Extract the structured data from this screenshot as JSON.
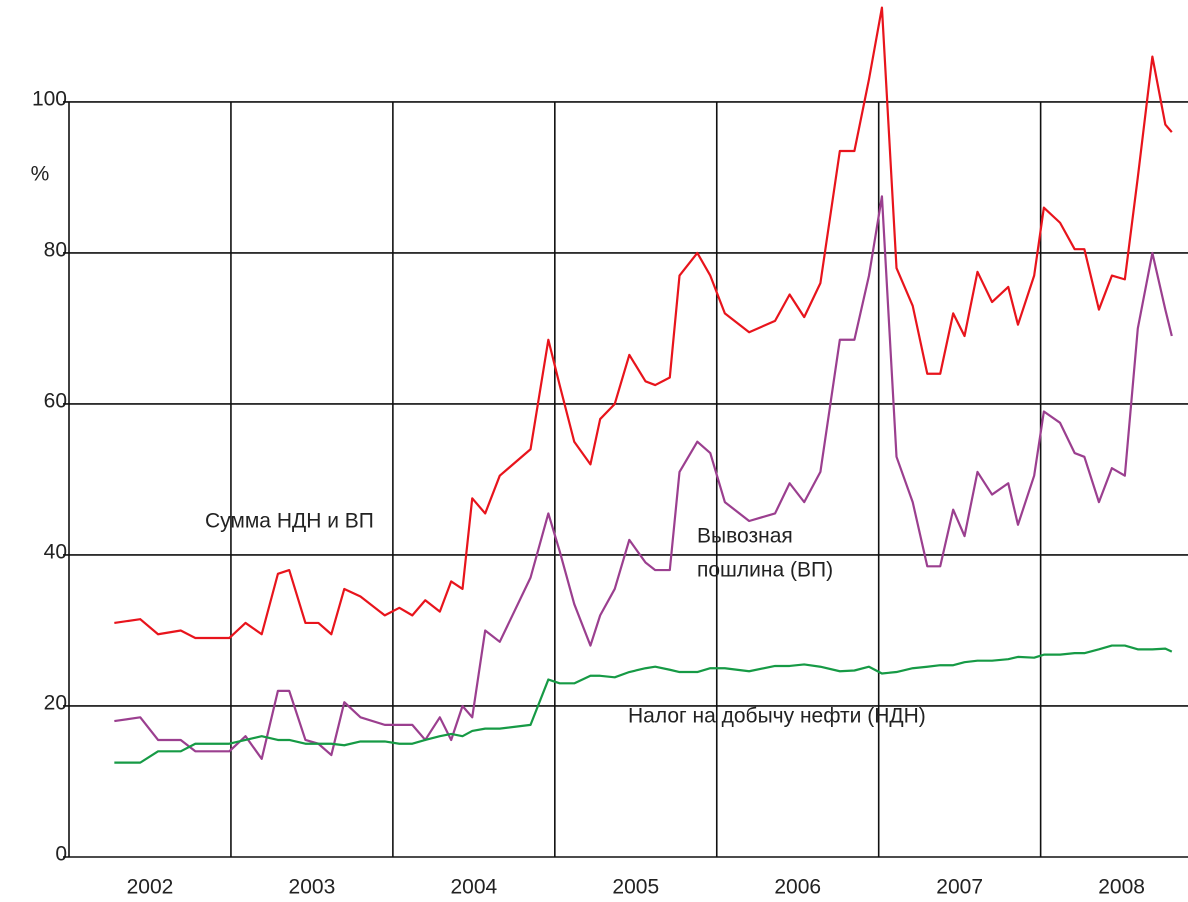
{
  "chart_data": {
    "type": "line",
    "ylabel": "%",
    "xlim": [
      2002,
      2008.91
    ],
    "ylim": [
      0,
      113.5
    ],
    "yticks": [
      0,
      20,
      40,
      60,
      80,
      100
    ],
    "xticks": [
      {
        "value": 2002.5,
        "label": "2002"
      },
      {
        "value": 2003.5,
        "label": "2003"
      },
      {
        "value": 2004.5,
        "label": "2004"
      },
      {
        "value": 2005.5,
        "label": "2005"
      },
      {
        "value": 2006.5,
        "label": "2006"
      },
      {
        "value": 2007.5,
        "label": "2007"
      },
      {
        "value": 2008.5,
        "label": "2008"
      }
    ],
    "xgrid": [
      2003,
      2004,
      2005,
      2006,
      2007,
      2008
    ],
    "grid": true,
    "annotations": [
      "Сумма НДН и ВП",
      "Вывозная",
      "пошлина (ВП)",
      "Налог на добычу нефти (НДН)"
    ],
    "x": [
      2002.28,
      2002.44,
      2002.55,
      2002.69,
      2002.78,
      2002.99,
      2003.09,
      2003.19,
      2003.29,
      2003.36,
      2003.46,
      2003.54,
      2003.62,
      2003.7,
      2003.8,
      2003.95,
      2004.04,
      2004.12,
      2004.2,
      2004.29,
      2004.36,
      2004.43,
      2004.49,
      2004.57,
      2004.66,
      2004.85,
      2004.96,
      2005.03,
      2005.12,
      2005.22,
      2005.28,
      2005.37,
      2005.46,
      2005.56,
      2005.62,
      2005.71,
      2005.77,
      2005.88,
      2005.96,
      2006.05,
      2006.2,
      2006.36,
      2006.45,
      2006.54,
      2006.64,
      2006.76,
      2006.85,
      2006.94,
      2007.02,
      2007.11,
      2007.21,
      2007.3,
      2007.38,
      2007.46,
      2007.53,
      2007.61,
      2007.7,
      2007.8,
      2007.86,
      2007.96,
      2008.02,
      2008.12,
      2008.21,
      2008.27,
      2008.36,
      2008.44,
      2008.52,
      2008.6,
      2008.69,
      2008.77,
      2008.81
    ],
    "series": [
      {
        "color": "#e8141c",
        "values": [
          31,
          31.5,
          29.5,
          30,
          29,
          29,
          31,
          29.5,
          37.5,
          38,
          31,
          31,
          29.5,
          35.5,
          34.5,
          32,
          33,
          32,
          34,
          32.5,
          36.5,
          35.5,
          47.5,
          45.5,
          50.5,
          54,
          68.5,
          62.5,
          55,
          52,
          58,
          60,
          66.5,
          63,
          62.5,
          63.5,
          77,
          80,
          77,
          72,
          69.5,
          71,
          74.5,
          71.5,
          76,
          93.5,
          93.5,
          103,
          112.5,
          78,
          73,
          64,
          64,
          72,
          69,
          77.5,
          73.5,
          75.5,
          70.5,
          77,
          86,
          84,
          80.5,
          80.5,
          72.5,
          77,
          76.5,
          90,
          106,
          97,
          96
        ]
      },
      {
        "color": "#9b3f8f",
        "values": [
          18,
          18.5,
          15.5,
          15.5,
          14,
          14,
          16,
          13,
          22,
          22,
          15.5,
          15,
          13.5,
          20.5,
          18.5,
          17.5,
          17.5,
          17.5,
          15.5,
          18.5,
          15.5,
          20,
          18.5,
          30,
          28.5,
          37,
          45.5,
          40.5,
          33.5,
          28,
          32,
          35.5,
          42,
          39,
          38,
          38,
          51,
          55,
          53.5,
          47,
          44.5,
          45.5,
          49.5,
          47,
          51,
          68.5,
          68.5,
          77,
          87.5,
          53,
          47,
          38.5,
          38.5,
          46,
          42.5,
          51,
          48,
          49.5,
          44,
          50.5,
          59,
          57.5,
          53.5,
          53,
          47,
          51.5,
          50.5,
          70,
          80,
          72.5,
          69
        ]
      },
      {
        "color": "#169a45",
        "values": [
          12.5,
          12.5,
          14,
          14,
          15,
          15,
          15.5,
          16,
          15.5,
          15.5,
          15,
          15,
          15,
          14.8,
          15.3,
          15.3,
          15,
          15,
          15.5,
          16,
          16.3,
          16,
          16.7,
          17,
          17,
          17.5,
          23.5,
          23,
          23,
          24,
          24,
          23.8,
          24.5,
          25,
          25.2,
          24.8,
          24.5,
          24.5,
          25,
          25,
          24.6,
          25.3,
          25.3,
          25.5,
          25.2,
          24.6,
          24.7,
          25.2,
          24.3,
          24.5,
          25,
          25.2,
          25.4,
          25.4,
          25.8,
          26,
          26,
          26.2,
          26.5,
          26.4,
          26.8,
          26.8,
          27,
          27,
          27.5,
          28,
          28,
          27.5,
          27.5,
          27.6,
          27.2
        ]
      }
    ]
  }
}
